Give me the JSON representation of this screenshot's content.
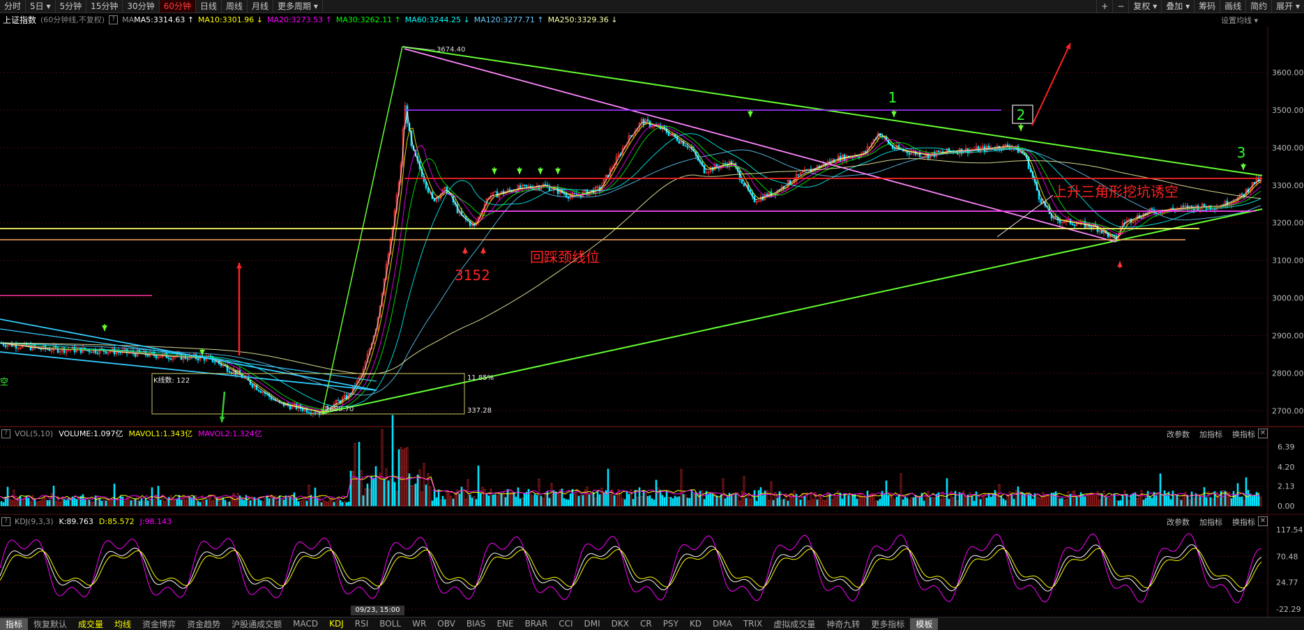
{
  "toolbar": {
    "periods": [
      "分时",
      "5日 ▾",
      "5分钟",
      "15分钟",
      "30分钟",
      "60分钟",
      "日线",
      "周线",
      "月线",
      "更多周期 ▾"
    ],
    "active_index": 5,
    "right_tools": [
      "+",
      "−",
      "复权 ▾",
      "叠加 ▾",
      "筹码",
      "画线",
      "简约",
      "展开 ▾"
    ]
  },
  "main": {
    "title": "上证指数",
    "subtitle": "(60分钟线,不复权)",
    "ma_label": "MA",
    "ma": [
      {
        "text": "MA5:3314.63",
        "color": "#ffffff"
      },
      {
        "text": "MA10:3301.96",
        "color": "#ffff00"
      },
      {
        "text": "MA20:3273.53",
        "color": "#ff00ff"
      },
      {
        "text": "MA30:3262.11",
        "color": "#00ff00"
      },
      {
        "text": "MA60:3244.25",
        "color": "#00ffff"
      },
      {
        "text": "MA120:3277.71",
        "color": "#66ccff"
      },
      {
        "text": "MA250:3329.36",
        "color": "#ffffaa"
      }
    ],
    "settings": "设置均线 ▾",
    "y_ticks": [
      "3600.00",
      "3500.00",
      "3400.00",
      "3300.00",
      "3200.00",
      "3100.00",
      "3000.00",
      "2900.00",
      "2800.00",
      "2700.00"
    ],
    "y_values": [
      3600,
      3500,
      3400,
      3300,
      3200,
      3100,
      3000,
      2900,
      2800,
      2700
    ],
    "high_label": "3674.40",
    "low_label": "2689.70",
    "low_value_red": "3152",
    "annotation_neckline": "回踩颈线位",
    "annotation_triangle": "上升三角形挖坑诱空",
    "wave_labels": [
      "1",
      "2",
      "3"
    ],
    "box_bars": "K线数: 122",
    "box_pct": "11.85%",
    "box_diff": "337.28",
    "left_edge_char": "空"
  },
  "volume": {
    "name": "VOL(5,10)",
    "volume": "VOLUME:1.097亿",
    "mavol1": "MAVOL1:1.343亿",
    "mavol2": "MAVOL2:1.324亿",
    "tools": [
      "改参数",
      "加指标",
      "换指标"
    ],
    "y_ticks": [
      "6.39",
      "4.20",
      "2.13",
      "0.00"
    ],
    "y_values": [
      6.39,
      4.2,
      2.13,
      0.0
    ]
  },
  "kdj": {
    "name": "KDJ(9,3,3)",
    "k": "K:89.763",
    "d": "D:85.572",
    "j": "J:98.143",
    "tools": [
      "改参数",
      "加指标",
      "换指标"
    ],
    "y_ticks": [
      "117.54",
      "70.48",
      "24.77",
      "-22.29"
    ],
    "y_values": [
      117.54,
      70.48,
      24.77,
      -22.29
    ]
  },
  "time_badge": "09/23, 15:00",
  "bottom_tabs": [
    "指标",
    "恢复默认",
    "成交量",
    "均线",
    "资金博弈",
    "资金趋势",
    "沪股通成交额",
    "MACD",
    "KDJ",
    "RSI",
    "BOLL",
    "WR",
    "OBV",
    "BIAS",
    "ENE",
    "BRAR",
    "CCI",
    "DMI",
    "DKX",
    "CR",
    "PSY",
    "KD",
    "DMA",
    "TRIX",
    "虚拟成交量",
    "神奇九转",
    "更多指标",
    "模板"
  ],
  "colors": {
    "up": "#ff3232",
    "down": "#00e5ff",
    "grid": "#3a0000",
    "accent": "#ff3b3b"
  }
}
